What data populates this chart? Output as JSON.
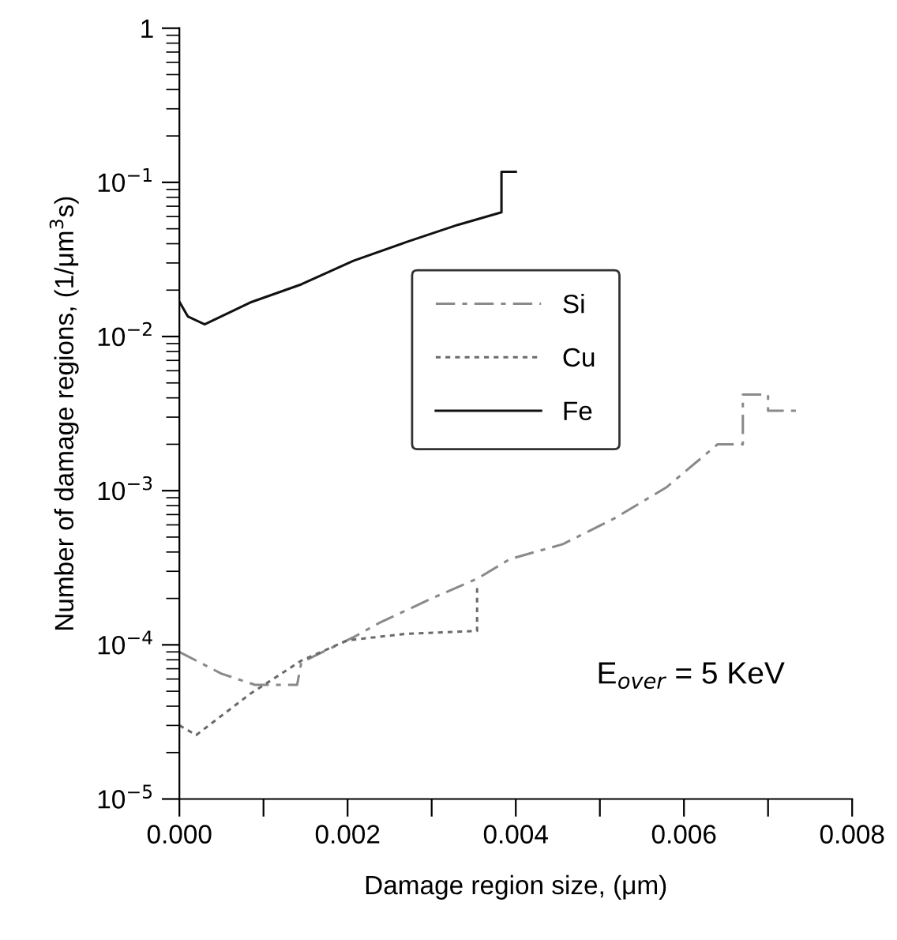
{
  "chart_data": {
    "type": "line",
    "xlabel": "Damage region size, (μm)",
    "ylabel": "Number of damage regions, (1/μm$^{3}$s)",
    "log": "y",
    "xlim": [
      0,
      0.008
    ],
    "ylim": [
      1e-05,
      1
    ],
    "xticks": [
      {
        "value": 0,
        "label": "0.000"
      },
      {
        "value": 0.001,
        "label": null
      },
      {
        "value": 0.002,
        "label": "0.002"
      },
      {
        "value": 0.003,
        "label": null
      },
      {
        "value": 0.004,
        "label": "0.004"
      },
      {
        "value": 0.005,
        "label": null
      },
      {
        "value": 0.006,
        "label": "0.006"
      },
      {
        "value": 0.007,
        "label": null
      },
      {
        "value": 0.008,
        "label": "0.008"
      }
    ],
    "yticks": [
      {
        "value": 1e-05,
        "label": "10$^{−5}$"
      },
      {
        "value": 0.0001,
        "label": "10$^{−4}$"
      },
      {
        "value": 0.001,
        "label": "10$^{−3}$"
      },
      {
        "value": 0.01,
        "label": "10$^{−2}$"
      },
      {
        "value": 0.1,
        "label": "10$^{−1}$"
      },
      {
        "value": 1,
        "label": "1"
      }
    ],
    "grid": false,
    "legend": "center",
    "marker": "none",
    "annotations": [
      "E$_{over}$ = 5 KeV"
    ],
    "series": [
      {
        "name": "Si",
        "color": "#8a8a8a",
        "line_style": "dashed",
        "x": [
          0,
          0.0005,
          0.0009,
          0.0014,
          0.00145,
          0.00207,
          0.00238,
          0.003,
          0.00355,
          0.00393,
          0.00456,
          0.00517,
          0.00579,
          0.0064,
          0.0067,
          0.0067,
          0.007,
          0.007,
          0.00735
        ],
        "values": [
          9e-05,
          6.5e-05,
          5.5e-05,
          5.5e-05,
          7.7e-05,
          0.000112,
          0.000139,
          0.0002,
          0.00027,
          0.00036,
          0.00045,
          0.00066,
          0.00105,
          0.002,
          0.002,
          0.0042,
          0.0042,
          0.0033,
          0.0033
        ]
      },
      {
        "name": "Cu",
        "color": "#6a6a6a",
        "line_style": "dotted",
        "x": [
          0,
          0.0002,
          0.00084,
          0.00145,
          0.002,
          0.0027,
          0.00354,
          0.00354,
          0.0036
        ],
        "values": [
          3e-05,
          2.6e-05,
          4.8e-05,
          7.9e-05,
          0.000107,
          0.000118,
          0.000123,
          0.00023,
          0.00023
        ]
      },
      {
        "name": "Fe",
        "color": "#111111",
        "line_style": "solid",
        "x": [
          0,
          0.0001,
          0.0003,
          0.00084,
          0.00145,
          0.00207,
          0.0027,
          0.00331,
          0.00383,
          0.00383,
          0.004
        ],
        "values": [
          0.0168,
          0.0135,
          0.012,
          0.0166,
          0.0218,
          0.031,
          0.041,
          0.053,
          0.064,
          0.117,
          0.117
        ]
      }
    ]
  }
}
